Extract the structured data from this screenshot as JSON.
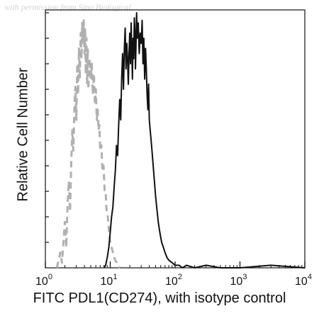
{
  "watermark": "with permission from Sino Biological",
  "chart_data": {
    "type": "line",
    "xlabel": "FITC PDL1(CD274), with isotype control",
    "ylabel": "Relative Cell Number",
    "xscale": "log",
    "xlim": [
      1,
      10000
    ],
    "ylim": [
      0,
      100
    ],
    "x_ticks": [
      {
        "value": 1,
        "base": "10",
        "exp": "0"
      },
      {
        "value": 10,
        "base": "10",
        "exp": "1"
      },
      {
        "value": 100,
        "base": "10",
        "exp": "2"
      },
      {
        "value": 1000,
        "base": "10",
        "exp": "3"
      },
      {
        "value": 10000,
        "base": "10",
        "exp": "4"
      }
    ],
    "grid": false,
    "series": [
      {
        "style": "dashed",
        "color": "#b0b0b0",
        "x": [
          1.5,
          1.6,
          1.7,
          1.8,
          1.9,
          2.0,
          2.1,
          2.2,
          2.3,
          2.4,
          2.5,
          2.6,
          2.7,
          2.8,
          2.9,
          3.0,
          3.1,
          3.2,
          3.3,
          3.4,
          3.5,
          3.6,
          3.7,
          3.8,
          3.9,
          4.0,
          4.1,
          4.2,
          4.3,
          4.4,
          4.5,
          4.6,
          4.8,
          5.0,
          5.2,
          5.4,
          5.6,
          5.8,
          6.0,
          6.2,
          6.4,
          6.6,
          6.8,
          7.0,
          7.3,
          7.6,
          7.9,
          8.2,
          8.5,
          8.8,
          9.2,
          9.6,
          10.0,
          10.5,
          11.0,
          11.5,
          12.0,
          12.6,
          13.2,
          14.0
        ],
        "y": [
          0,
          3,
          6,
          2,
          10,
          18,
          8,
          25,
          34,
          22,
          40,
          54,
          46,
          62,
          71,
          58,
          80,
          68,
          86,
          74,
          92,
          82,
          96,
          88,
          97,
          84,
          94,
          76,
          90,
          72,
          86,
          70,
          82,
          74,
          80,
          68,
          76,
          64,
          70,
          58,
          62,
          54,
          56,
          46,
          48,
          38,
          40,
          30,
          30,
          22,
          20,
          14,
          10,
          8,
          6,
          4,
          3,
          2,
          1,
          0
        ]
      },
      {
        "style": "solid",
        "color": "#111111",
        "x": [
          8.0,
          8.5,
          9.0,
          9.5,
          10.0,
          10.5,
          11.0,
          11.5,
          12.0,
          12.5,
          13.0,
          13.5,
          14.0,
          14.5,
          15.0,
          15.5,
          16.0,
          16.5,
          17.0,
          17.5,
          18.0,
          18.5,
          19.0,
          19.5,
          20.0,
          20.5,
          21.0,
          21.5,
          22.0,
          22.5,
          23.0,
          23.5,
          24.0,
          24.5,
          25.0,
          25.5,
          26.0,
          27.0,
          28.0,
          29.0,
          30.0,
          31.0,
          32.0,
          33.0,
          34.0,
          35.0,
          36.0,
          37.0,
          38.0,
          39.0,
          40.0,
          42.0,
          44.0,
          46.0,
          48.0,
          50.0,
          52.0,
          55.0,
          58.0,
          62.0,
          66.0,
          70.0,
          75.0,
          80.0,
          90.0,
          100.0,
          115.0,
          130.0,
          150.0,
          200.0,
          300.0,
          500.0,
          1000.0,
          3000.0,
          10000.0
        ],
        "y": [
          0,
          1,
          4,
          8,
          14,
          20,
          24,
          32,
          38,
          48,
          44,
          56,
          66,
          58,
          74,
          84,
          70,
          86,
          94,
          78,
          88,
          82,
          72,
          84,
          92,
          80,
          96,
          86,
          74,
          90,
          82,
          98,
          92,
          78,
          88,
          100,
          90,
          96,
          84,
          92,
          88,
          97,
          80,
          90,
          74,
          86,
          78,
          68,
          62,
          72,
          58,
          52,
          46,
          40,
          34,
          28,
          24,
          18,
          14,
          10,
          8,
          6,
          4,
          3,
          2,
          1,
          1,
          0,
          1,
          0,
          1,
          0,
          0,
          1,
          0
        ]
      }
    ]
  }
}
